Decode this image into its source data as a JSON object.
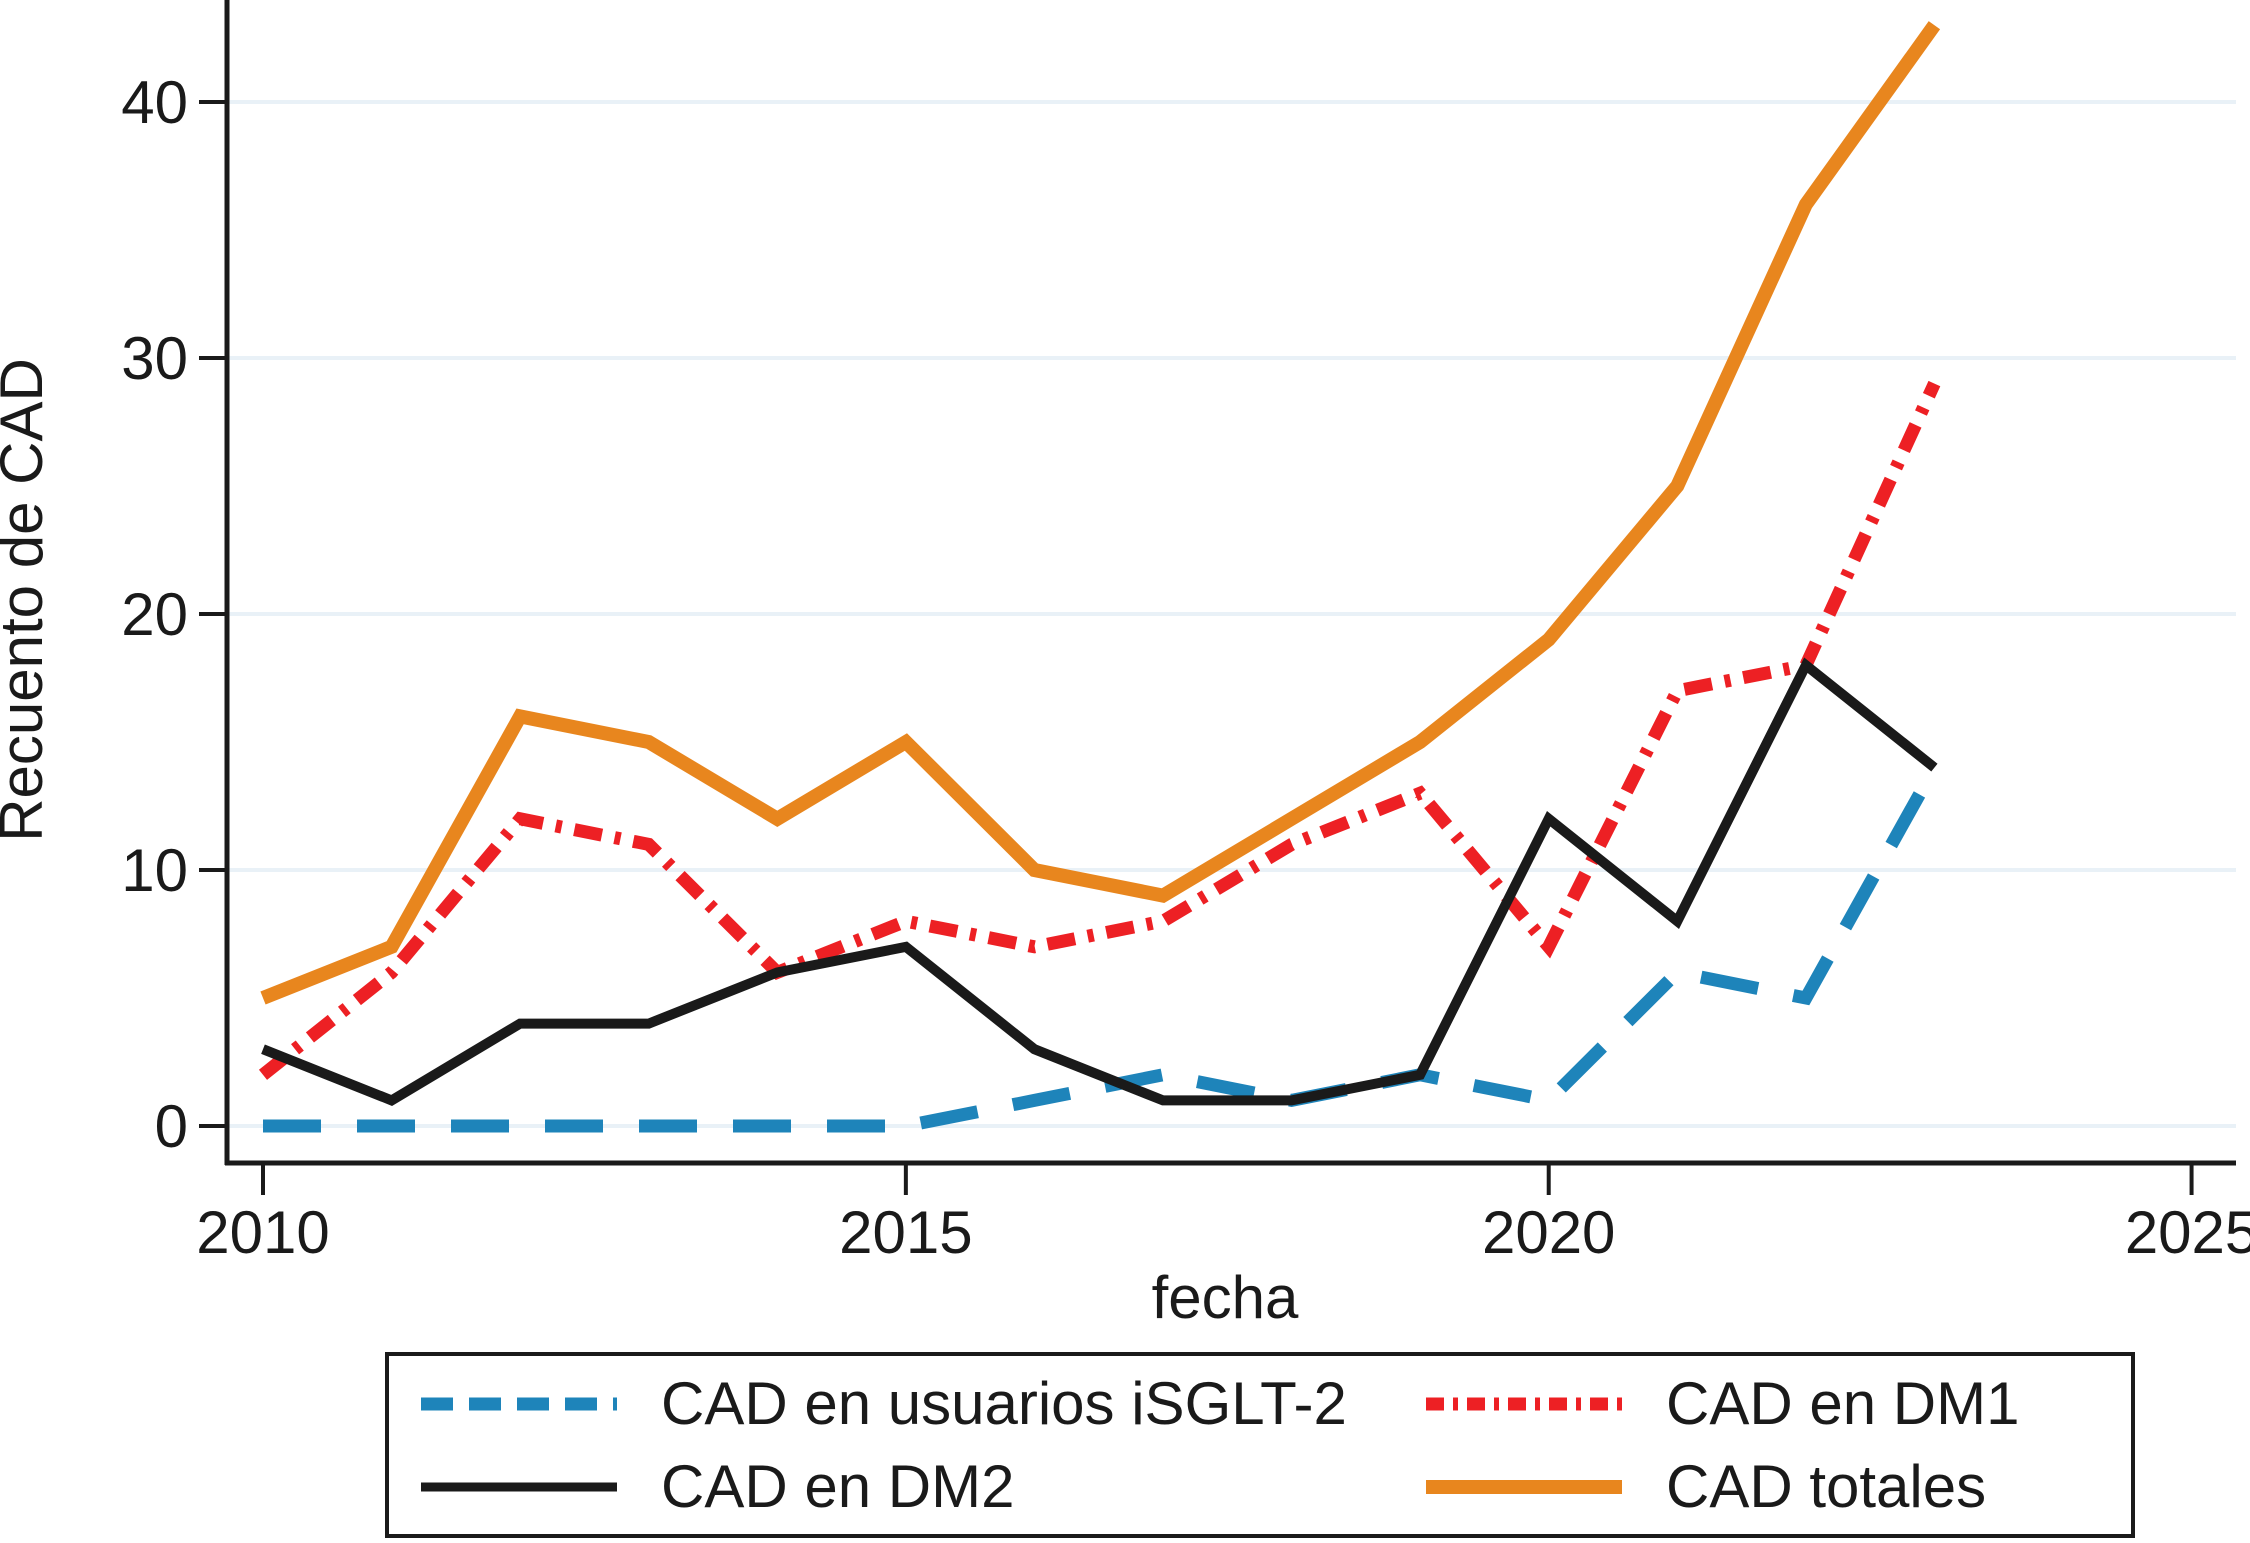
{
  "chart_data": {
    "type": "line",
    "title": "",
    "xlabel": "fecha",
    "ylabel": "Recuento de CAD",
    "x": [
      2010,
      2011,
      2012,
      2013,
      2014,
      2015,
      2016,
      2017,
      2018,
      2019,
      2020,
      2021,
      2022,
      2023
    ],
    "series": [
      {
        "name": "CAD en usuarios iSGLT-2",
        "color": "#1e84ba",
        "line_style": "dashed",
        "values": [
          0,
          0,
          0,
          0,
          0,
          0,
          1,
          2,
          1,
          2,
          1,
          6,
          5,
          14
        ]
      },
      {
        "name": "CAD en DM1",
        "color": "#ed2024",
        "line_style": "dash-dot",
        "values": [
          2,
          6,
          12,
          11,
          6,
          8,
          7,
          8,
          11,
          13,
          7,
          17,
          18,
          29
        ]
      },
      {
        "name": "CAD en DM2",
        "color": "#1a1a1a",
        "line_style": "solid",
        "values": [
          3,
          1,
          4,
          4,
          6,
          7,
          3,
          1,
          1,
          2,
          12,
          8,
          18,
          14
        ]
      },
      {
        "name": "CAD totales",
        "color": "#e8861e",
        "line_style": "solid",
        "values": [
          5,
          7,
          16,
          15,
          12,
          15,
          10,
          9,
          12,
          15,
          19,
          25,
          36,
          43
        ]
      }
    ],
    "x_ticks": [
      2010,
      2015,
      2020,
      2025
    ],
    "y_ticks": [
      0,
      10,
      20,
      30,
      40
    ],
    "xlim": [
      2009.7,
      2025.4
    ],
    "ylim": [
      -1.5,
      44
    ],
    "grid": "horizontal",
    "gridline_color": "#e9f1f7",
    "axis_color": "#1a1a1a",
    "legend_position": "bottom"
  },
  "legend": {
    "order_note": "row-major: top-left, top-right, bottom-left, bottom-right",
    "items": [
      {
        "series": 0,
        "sample_dash": "32 16",
        "sample_width": 13
      },
      {
        "series": 1,
        "sample_dash": "18 9 5 9",
        "sample_width": 13
      },
      {
        "series": 2,
        "sample_dash": "",
        "sample_width": 9
      },
      {
        "series": 3,
        "sample_dash": "",
        "sample_width": 14
      }
    ]
  },
  "plot_styles": {
    "dash_patterns": {
      "dashed": "58 36",
      "dash-dot": "28 13 6 13",
      "solid": ""
    },
    "stroke_widths": [
      13,
      13,
      10,
      14
    ]
  }
}
